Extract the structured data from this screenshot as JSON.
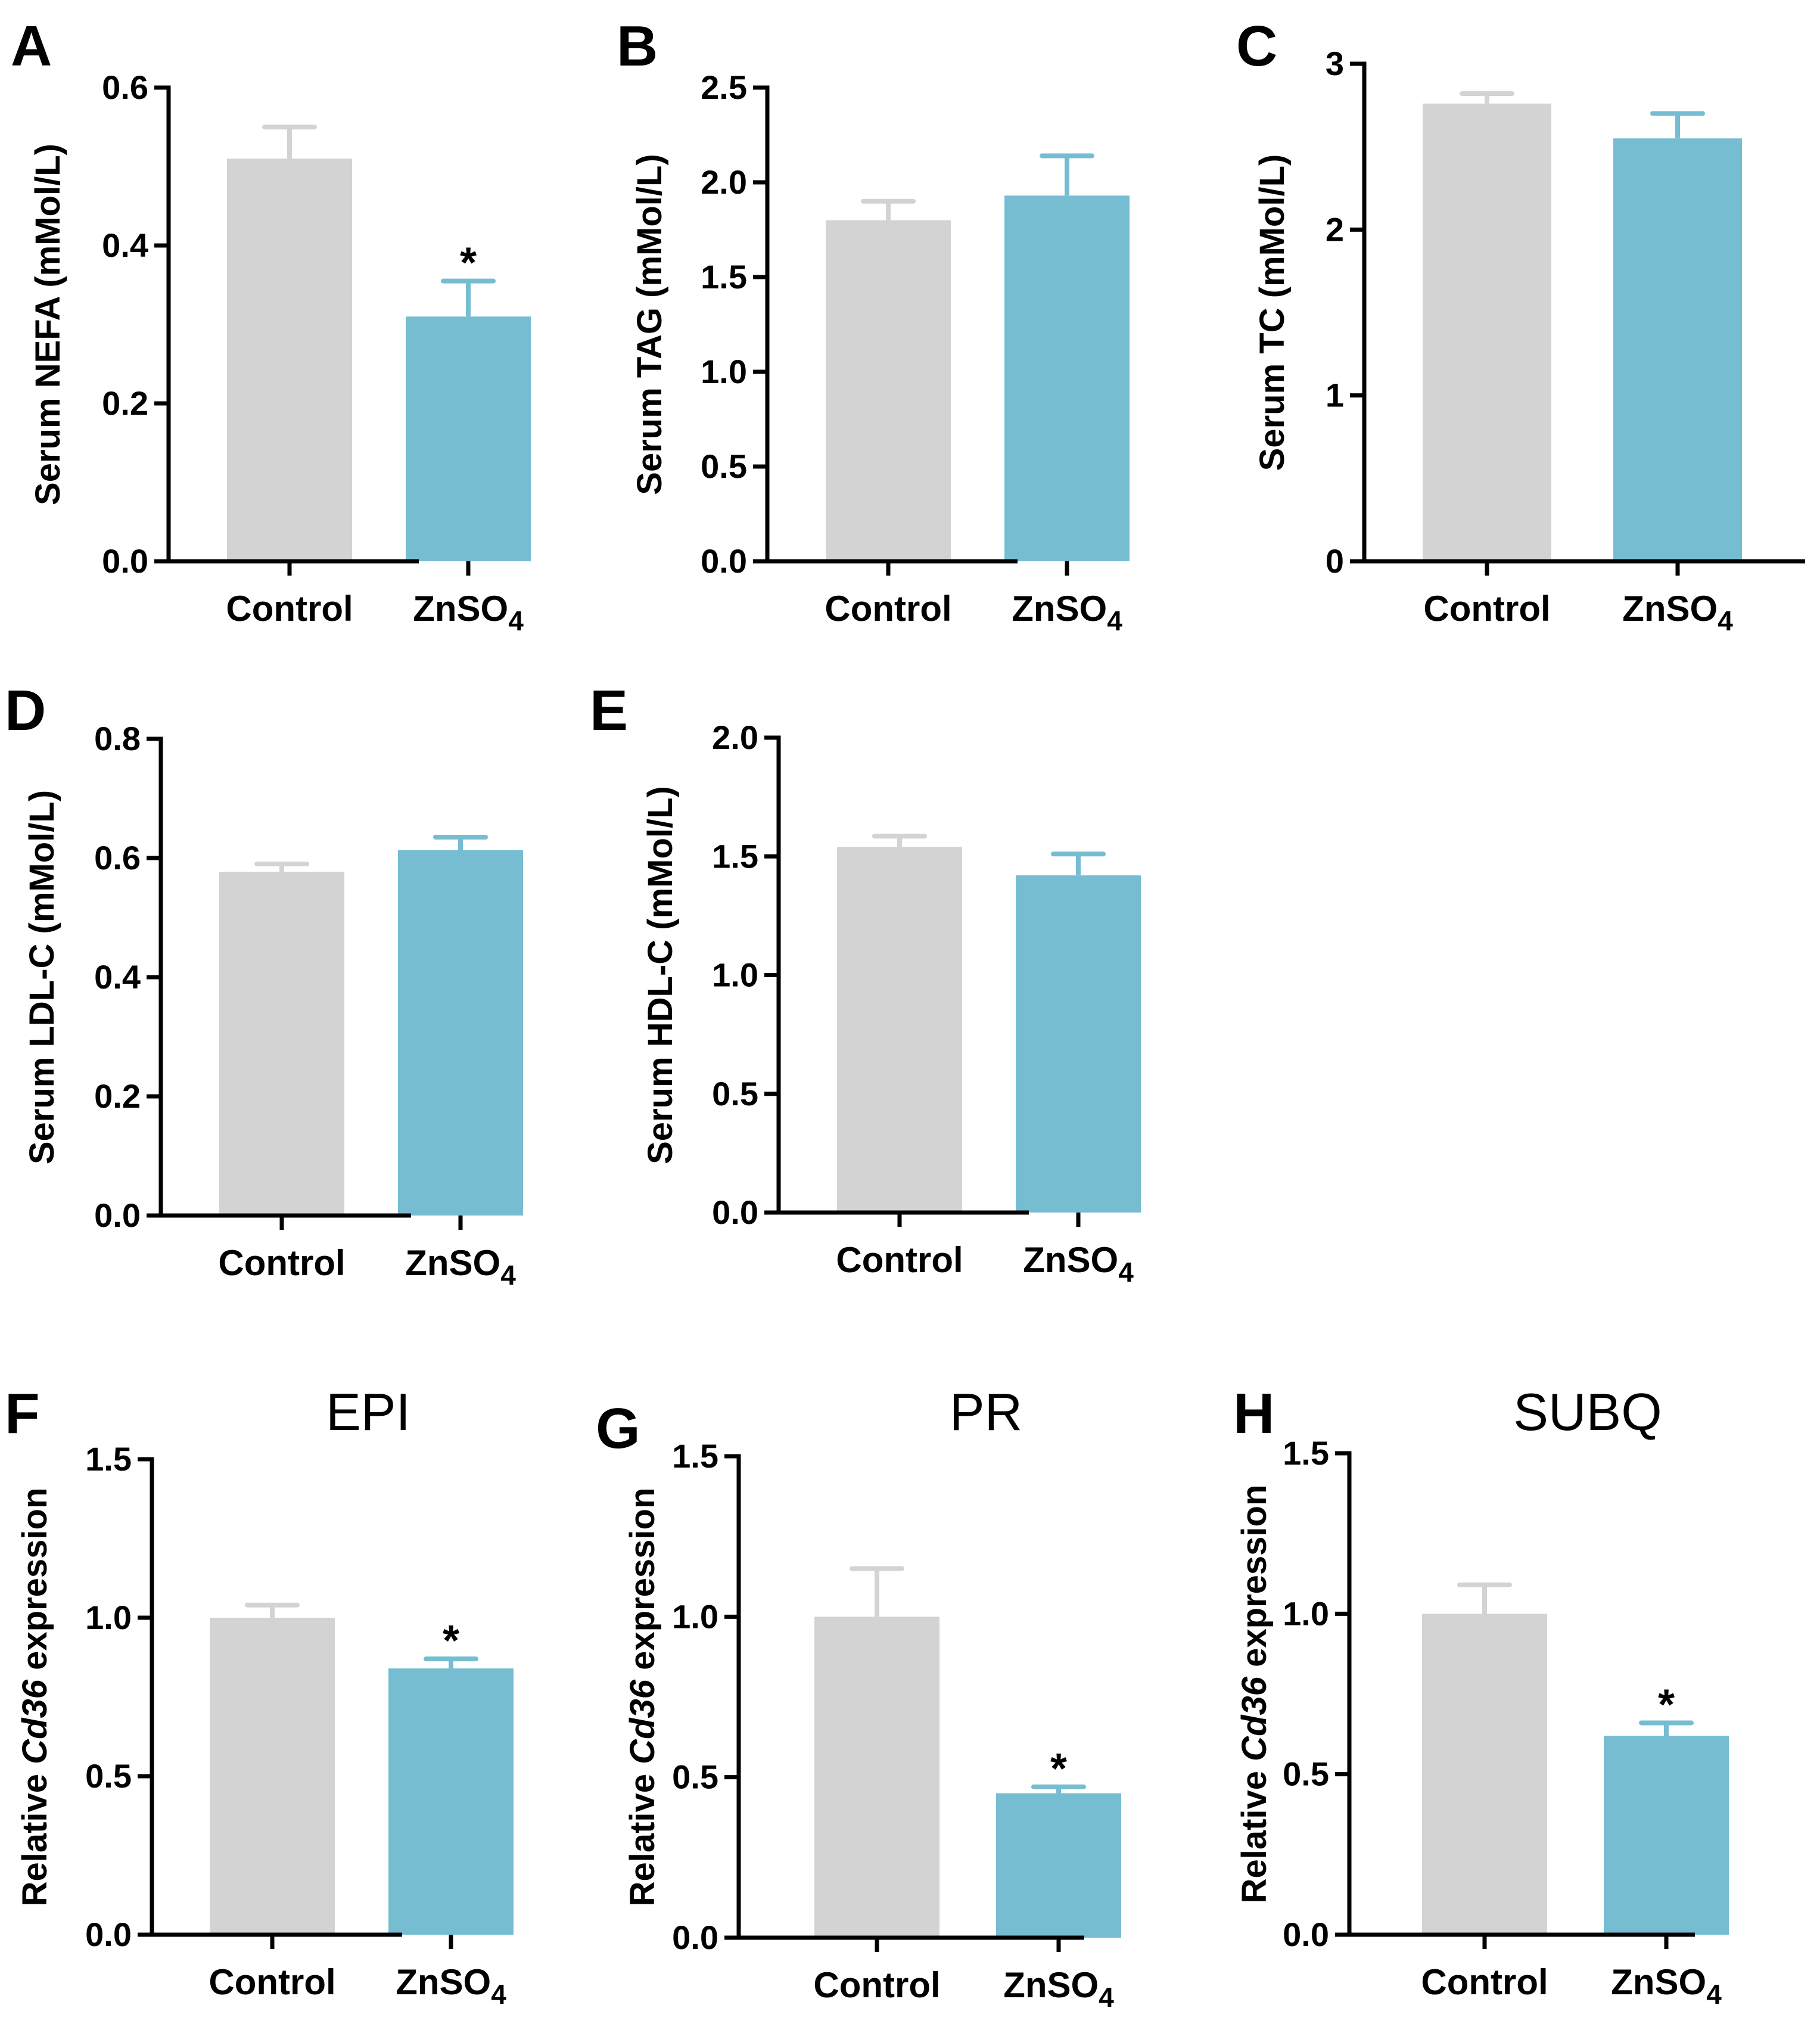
{
  "colors": {
    "control": "#d3d3d3",
    "treatment": "#76bdd2",
    "axis": "#000000"
  },
  "chart_data": [
    {
      "panel": "A",
      "type": "bar",
      "title": "",
      "ylabel_parts": [
        {
          "text": "Serum NEFA (mMol/L)",
          "italic": false
        }
      ],
      "categories": [
        {
          "main": "Control",
          "sub": ""
        },
        {
          "main": "ZnSO",
          "sub": "4"
        }
      ],
      "values": [
        0.51,
        0.31
      ],
      "errors": [
        0.04,
        0.045
      ],
      "significance": [
        "",
        "*"
      ],
      "ylim": [
        0,
        0.6
      ],
      "yticks": [
        "0.0",
        "0.2",
        "0.4",
        "0.6"
      ]
    },
    {
      "panel": "B",
      "type": "bar",
      "title": "",
      "ylabel_parts": [
        {
          "text": "Serum TAG (mMol/L)",
          "italic": false
        }
      ],
      "categories": [
        {
          "main": "Control",
          "sub": ""
        },
        {
          "main": "ZnSO",
          "sub": "4"
        }
      ],
      "values": [
        1.8,
        1.93
      ],
      "errors": [
        0.1,
        0.21
      ],
      "significance": [
        "",
        ""
      ],
      "ylim": [
        0,
        2.5
      ],
      "yticks": [
        "0.0",
        "0.5",
        "1.0",
        "1.5",
        "2.0",
        "2.5"
      ]
    },
    {
      "panel": "C",
      "type": "bar",
      "title": "",
      "ylabel_parts": [
        {
          "text": "Serum TC (mMol/L)",
          "italic": false
        }
      ],
      "categories": [
        {
          "main": "Control",
          "sub": ""
        },
        {
          "main": "ZnSO",
          "sub": "4"
        }
      ],
      "values": [
        2.76,
        2.55
      ],
      "errors": [
        0.06,
        0.15
      ],
      "significance": [
        "",
        ""
      ],
      "ylim": [
        0,
        3
      ],
      "yticks": [
        "0",
        "1",
        "2",
        "3"
      ]
    },
    {
      "panel": "D",
      "type": "bar",
      "title": "",
      "ylabel_parts": [
        {
          "text": "Serum LDL-C (mMol/L)",
          "italic": false
        }
      ],
      "categories": [
        {
          "main": "Control",
          "sub": ""
        },
        {
          "main": "ZnSO",
          "sub": "4"
        }
      ],
      "values": [
        0.577,
        0.613
      ],
      "errors": [
        0.013,
        0.022
      ],
      "significance": [
        "",
        ""
      ],
      "ylim": [
        0,
        0.8
      ],
      "yticks": [
        "0.0",
        "0.2",
        "0.4",
        "0.6",
        "0.8"
      ]
    },
    {
      "panel": "E",
      "type": "bar",
      "title": "",
      "ylabel_parts": [
        {
          "text": "Serum HDL-C (mMol/L)",
          "italic": false
        }
      ],
      "categories": [
        {
          "main": "Control",
          "sub": ""
        },
        {
          "main": "ZnSO",
          "sub": "4"
        }
      ],
      "values": [
        1.54,
        1.42
      ],
      "errors": [
        0.045,
        0.09
      ],
      "significance": [
        "",
        ""
      ],
      "ylim": [
        0,
        2.0
      ],
      "yticks": [
        "0.0",
        "0.5",
        "1.0",
        "1.5",
        "2.0"
      ]
    },
    {
      "panel": "F",
      "type": "bar",
      "title": "EPI",
      "ylabel_parts": [
        {
          "text": "Relative ",
          "italic": false
        },
        {
          "text": "Cd36",
          "italic": true
        },
        {
          "text": " expression",
          "italic": false
        }
      ],
      "categories": [
        {
          "main": "Control",
          "sub": ""
        },
        {
          "main": "ZnSO",
          "sub": "4"
        }
      ],
      "values": [
        1.0,
        0.84
      ],
      "errors": [
        0.04,
        0.03
      ],
      "significance": [
        "",
        "*"
      ],
      "ylim": [
        0,
        1.5
      ],
      "yticks": [
        "0.0",
        "0.5",
        "1.0",
        "1.5"
      ]
    },
    {
      "panel": "G",
      "type": "bar",
      "title": "PR",
      "ylabel_parts": [
        {
          "text": "Relative ",
          "italic": false
        },
        {
          "text": "Cd36",
          "italic": true
        },
        {
          "text": " expression",
          "italic": false
        }
      ],
      "categories": [
        {
          "main": "Control",
          "sub": ""
        },
        {
          "main": "ZnSO",
          "sub": "4"
        }
      ],
      "values": [
        1.0,
        0.45
      ],
      "errors": [
        0.15,
        0.02
      ],
      "significance": [
        "",
        "*"
      ],
      "ylim": [
        0,
        1.5
      ],
      "yticks": [
        "0.0",
        "0.5",
        "1.0",
        "1.5"
      ]
    },
    {
      "panel": "H",
      "type": "bar",
      "title": "SUBQ",
      "ylabel_parts": [
        {
          "text": "Relative ",
          "italic": false
        },
        {
          "text": "Cd36",
          "italic": true
        },
        {
          "text": " expression",
          "italic": false
        }
      ],
      "categories": [
        {
          "main": "Control",
          "sub": ""
        },
        {
          "main": "ZnSO",
          "sub": "4"
        }
      ],
      "values": [
        1.0,
        0.62
      ],
      "errors": [
        0.09,
        0.04
      ],
      "significance": [
        "",
        "*"
      ],
      "ylim": [
        0,
        1.5
      ],
      "yticks": [
        "0.0",
        "0.5",
        "1.0",
        "1.5"
      ]
    }
  ]
}
